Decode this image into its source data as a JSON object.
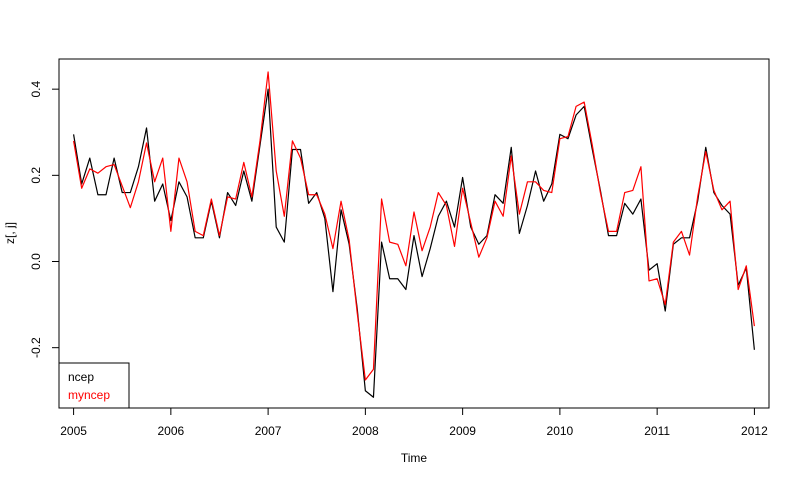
{
  "chart_data": {
    "type": "line",
    "title": "",
    "xlabel": "Time",
    "ylabel": "z[, j]",
    "xlim": [
      2004.85,
      2012.15
    ],
    "ylim": [
      -0.34,
      0.47
    ],
    "x_ticks": [
      "2005",
      "2006",
      "2007",
      "2008",
      "2009",
      "2010",
      "2011",
      "2012"
    ],
    "y_ticks": [
      "-0.2",
      "0.0",
      "0.2",
      "0.4"
    ],
    "grid": false,
    "legend_position": "bottom-left",
    "colors": {
      "ncep": "#000000",
      "myncep": "#ff0000"
    },
    "x_start": 2005.0,
    "x_step": 0.08333,
    "series": [
      {
        "name": "ncep",
        "color": "#000000",
        "values": [
          0.295,
          0.18,
          0.24,
          0.155,
          0.155,
          0.24,
          0.16,
          0.16,
          0.22,
          0.31,
          0.14,
          0.18,
          0.095,
          0.185,
          0.15,
          0.055,
          0.055,
          0.14,
          0.055,
          0.16,
          0.13,
          0.21,
          0.14,
          0.27,
          0.4,
          0.08,
          0.045,
          0.26,
          0.26,
          0.135,
          0.16,
          0.1,
          -0.07,
          0.12,
          0.04,
          -0.11,
          -0.3,
          -0.315,
          0.045,
          -0.04,
          -0.04,
          -0.065,
          0.06,
          -0.035,
          0.03,
          0.105,
          0.14,
          0.08,
          0.195,
          0.08,
          0.04,
          0.06,
          0.155,
          0.135,
          0.265,
          0.065,
          0.13,
          0.21,
          0.14,
          0.18,
          0.295,
          0.285,
          0.34,
          0.36,
          0.26,
          0.165,
          0.06,
          0.06,
          0.135,
          0.11,
          0.145,
          -0.02,
          -0.005,
          -0.115,
          0.04,
          0.055,
          0.055,
          0.14,
          0.265,
          0.16,
          0.13,
          0.11,
          -0.055,
          -0.015,
          -0.205
        ]
      },
      {
        "name": "myncep",
        "color": "#ff0000",
        "values": [
          0.28,
          0.17,
          0.215,
          0.205,
          0.22,
          0.225,
          0.175,
          0.125,
          0.185,
          0.275,
          0.185,
          0.24,
          0.07,
          0.24,
          0.185,
          0.07,
          0.06,
          0.145,
          0.06,
          0.15,
          0.145,
          0.23,
          0.15,
          0.28,
          0.44,
          0.21,
          0.105,
          0.28,
          0.24,
          0.155,
          0.155,
          0.11,
          0.03,
          0.14,
          0.05,
          -0.12,
          -0.275,
          -0.25,
          0.145,
          0.045,
          0.04,
          -0.01,
          0.115,
          0.025,
          0.08,
          0.16,
          0.13,
          0.035,
          0.17,
          0.09,
          0.01,
          0.055,
          0.14,
          0.105,
          0.245,
          0.11,
          0.185,
          0.185,
          0.165,
          0.16,
          0.285,
          0.29,
          0.36,
          0.37,
          0.27,
          0.16,
          0.07,
          0.07,
          0.16,
          0.165,
          0.22,
          -0.045,
          -0.04,
          -0.1,
          0.045,
          0.07,
          0.015,
          0.15,
          0.255,
          0.165,
          0.12,
          0.14,
          -0.065,
          -0.01,
          -0.15
        ]
      }
    ]
  }
}
